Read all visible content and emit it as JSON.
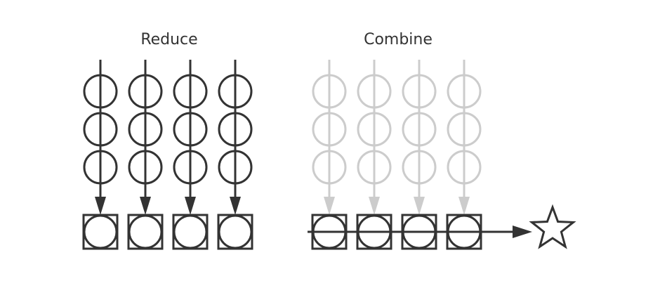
{
  "panels": {
    "reduce": {
      "title": "Reduce",
      "color": "#333333"
    },
    "combine": {
      "title": "Combine",
      "color": "#cccccc"
    }
  },
  "structure": {
    "columns_per_panel": 4,
    "circles_per_column": 3
  },
  "colors": {
    "dark": "#333333",
    "light": "#cccccc",
    "background": "#ffffff"
  },
  "icons": {
    "result": "star-icon",
    "element": "circle-icon",
    "accumulator": "boxed-circle-icon"
  }
}
